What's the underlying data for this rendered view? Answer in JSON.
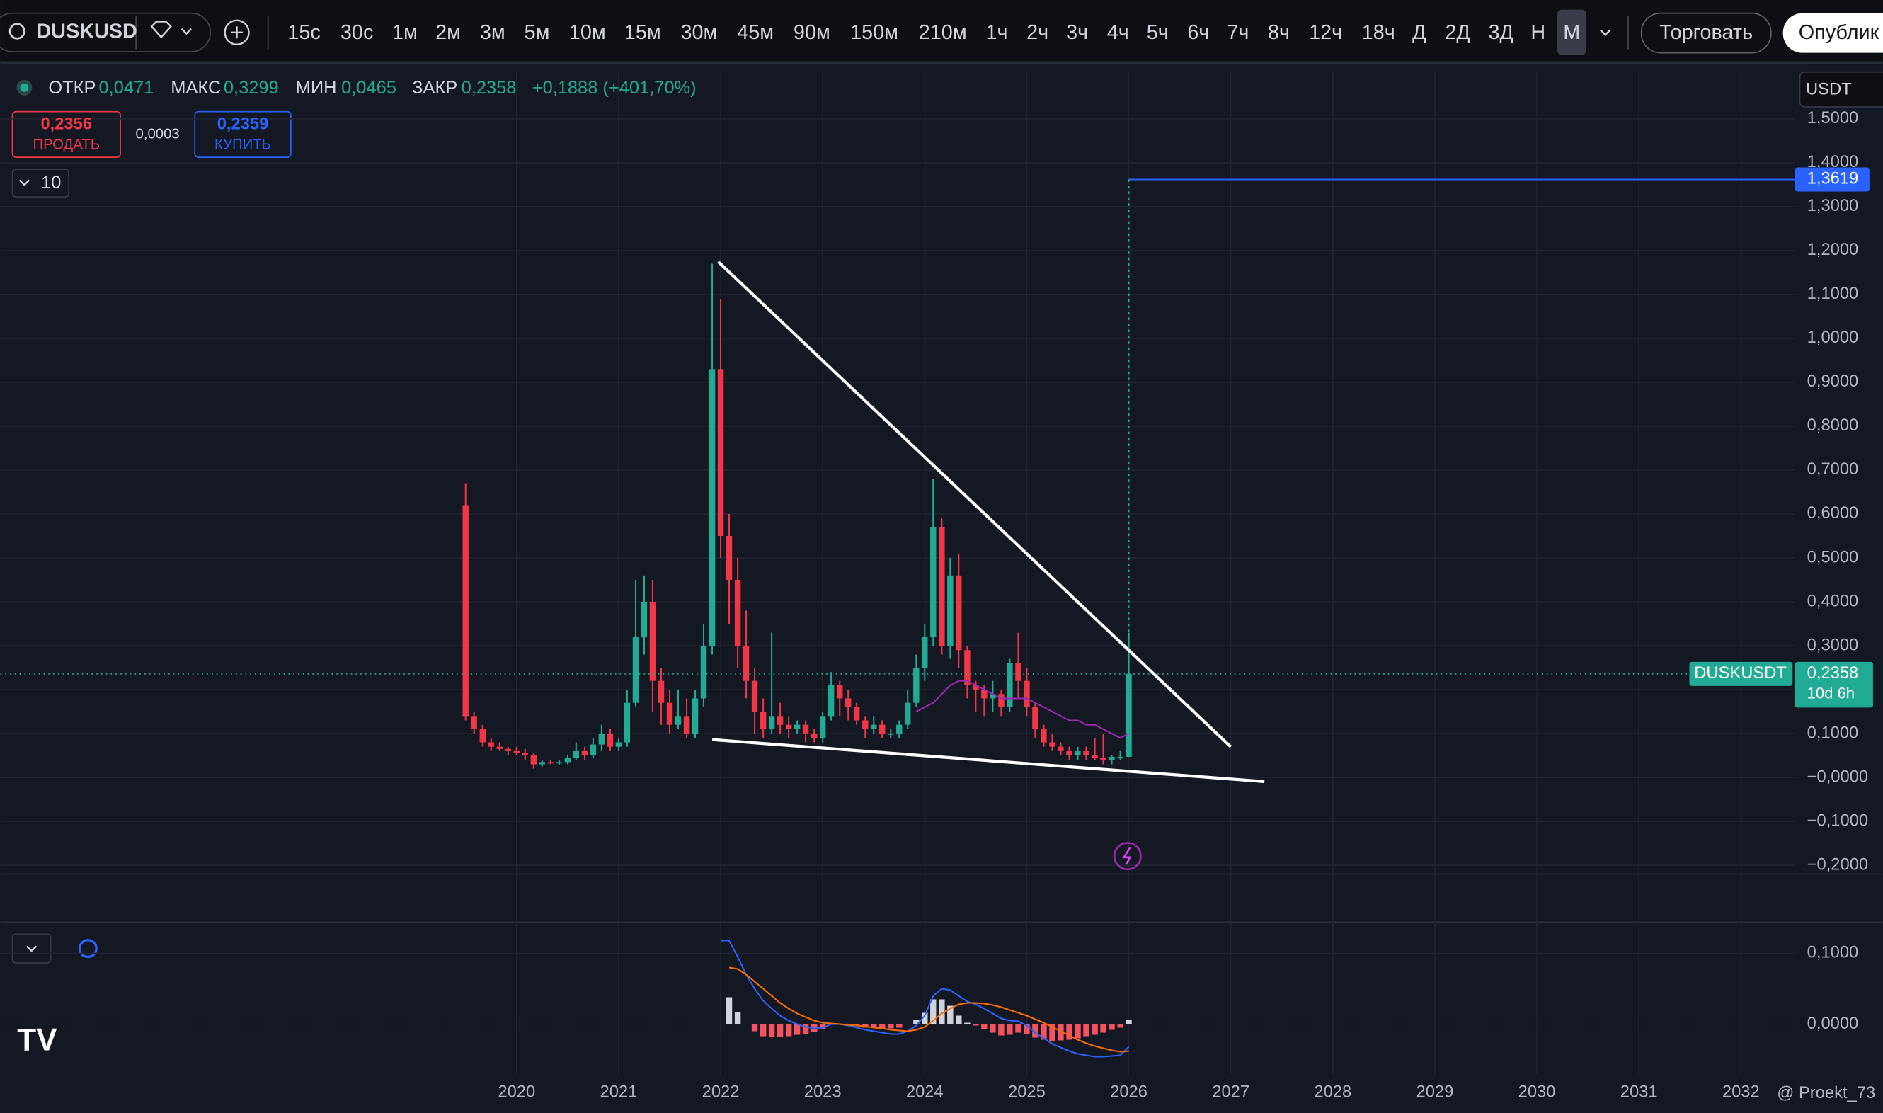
{
  "toolbar": {
    "symbol": "DUSKUSD",
    "intervals": [
      "15с",
      "30с",
      "1м",
      "2м",
      "3м",
      "5м",
      "10м",
      "15м",
      "30м",
      "45м",
      "90м",
      "150м",
      "210м",
      "1ч",
      "2ч",
      "3ч",
      "4ч",
      "5ч",
      "6ч",
      "7ч",
      "8ч",
      "12ч",
      "18ч",
      "Д",
      "2Д",
      "3Д",
      "Н",
      "М"
    ],
    "trade": "Торговать",
    "publish": "Опублик"
  },
  "legend": {
    "open_label": "ОТКР",
    "open": "0,0471",
    "high_label": "МАКС",
    "high": "0,3299",
    "low_label": "МИН",
    "low": "0,0465",
    "close_label": "ЗАКР",
    "close": "0,2358",
    "change": "+0,1888 (+401,70%)"
  },
  "trade_panel": {
    "sell_price": "0,2356",
    "sell": "ПРОДАТЬ",
    "spread": "0,0003",
    "buy_price": "0,2359",
    "buy": "КУПИТЬ"
  },
  "indicators_count": "10",
  "currency": "USDT",
  "watermark": "@ Proekt_73",
  "chart_data": [
    {
      "type": "candlestick",
      "up_color": "#22ab94",
      "down_color": "#f23645",
      "ma_color": "#9c27b0",
      "grid": true,
      "xlim": [
        2014.94,
        2032.53
      ],
      "xticks": [
        2020,
        2021,
        2022,
        2023,
        2024,
        2025,
        2026,
        2027,
        2028,
        2029,
        2030,
        2031,
        2032
      ],
      "ylim": [
        -0.22,
        1.53
      ],
      "yticks": [
        {
          "value": 1.5,
          "label": "1,5000"
        },
        {
          "value": 1.4,
          "label": "1,4000"
        },
        {
          "value": 1.3,
          "label": "1,3000"
        },
        {
          "value": 1.2,
          "label": "1,2000"
        },
        {
          "value": 1.1,
          "label": "1,1000"
        },
        {
          "value": 1.0,
          "label": "1,0000"
        },
        {
          "value": 0.9,
          "label": "0,9000"
        },
        {
          "value": 0.8,
          "label": "0,8000"
        },
        {
          "value": 0.7,
          "label": "0,7000"
        },
        {
          "value": 0.6,
          "label": "0,6000"
        },
        {
          "value": 0.5,
          "label": "0,5000"
        },
        {
          "value": 0.4,
          "label": "0,4000"
        },
        {
          "value": 0.3,
          "label": "0,3000"
        },
        {
          "value": 0.2,
          "label": "0,2000"
        },
        {
          "value": 0.1,
          "label": "0,1000"
        },
        {
          "value": 0,
          "label": "−0,0000"
        },
        {
          "value": -0.1,
          "label": "−0,1000"
        },
        {
          "value": -0.2,
          "label": "−0,2000"
        }
      ],
      "x": [
        2019.5,
        2019.583,
        2019.667,
        2019.75,
        2019.833,
        2019.917,
        2020.0,
        2020.083,
        2020.167,
        2020.25,
        2020.333,
        2020.417,
        2020.5,
        2020.583,
        2020.667,
        2020.75,
        2020.833,
        2020.917,
        2021.0,
        2021.083,
        2021.167,
        2021.25,
        2021.333,
        2021.417,
        2021.5,
        2021.583,
        2021.667,
        2021.75,
        2021.833,
        2021.917,
        2022.0,
        2022.083,
        2022.167,
        2022.25,
        2022.333,
        2022.417,
        2022.5,
        2022.583,
        2022.667,
        2022.75,
        2022.833,
        2022.917,
        2023.0,
        2023.083,
        2023.167,
        2023.25,
        2023.333,
        2023.417,
        2023.5,
        2023.583,
        2023.667,
        2023.75,
        2023.833,
        2023.917,
        2024.0,
        2024.083,
        2024.167,
        2024.25,
        2024.333,
        2024.417,
        2024.5,
        2024.583,
        2024.667,
        2024.75,
        2024.833,
        2024.917,
        2025.0,
        2025.083,
        2025.167,
        2025.25,
        2025.333,
        2025.417,
        2025.5,
        2025.583,
        2025.667,
        2025.75,
        2025.833,
        2025.917,
        2026.0
      ],
      "values": [
        [
          0.62,
          0.67,
          0.13,
          0.14
        ],
        [
          0.14,
          0.15,
          0.1,
          0.11
        ],
        [
          0.11,
          0.12,
          0.07,
          0.08
        ],
        [
          0.08,
          0.09,
          0.06,
          0.07
        ],
        [
          0.07,
          0.08,
          0.06,
          0.065
        ],
        [
          0.065,
          0.07,
          0.05,
          0.06
        ],
        [
          0.06,
          0.07,
          0.05,
          0.055
        ],
        [
          0.055,
          0.065,
          0.04,
          0.05
        ],
        [
          0.05,
          0.055,
          0.02,
          0.03
        ],
        [
          0.03,
          0.04,
          0.025,
          0.035
        ],
        [
          0.035,
          0.04,
          0.03,
          0.032
        ],
        [
          0.032,
          0.04,
          0.028,
          0.035
        ],
        [
          0.035,
          0.05,
          0.03,
          0.045
        ],
        [
          0.045,
          0.08,
          0.04,
          0.06
        ],
        [
          0.06,
          0.07,
          0.04,
          0.05
        ],
        [
          0.05,
          0.09,
          0.045,
          0.075
        ],
        [
          0.075,
          0.12,
          0.06,
          0.1
        ],
        [
          0.1,
          0.11,
          0.06,
          0.07
        ],
        [
          0.07,
          0.09,
          0.06,
          0.08
        ],
        [
          0.08,
          0.2,
          0.07,
          0.17
        ],
        [
          0.17,
          0.45,
          0.16,
          0.32
        ],
        [
          0.32,
          0.46,
          0.28,
          0.4
        ],
        [
          0.4,
          0.45,
          0.15,
          0.22
        ],
        [
          0.22,
          0.25,
          0.12,
          0.17
        ],
        [
          0.17,
          0.2,
          0.1,
          0.12
        ],
        [
          0.12,
          0.2,
          0.11,
          0.14
        ],
        [
          0.14,
          0.18,
          0.09,
          0.1
        ],
        [
          0.1,
          0.2,
          0.09,
          0.18
        ],
        [
          0.18,
          0.35,
          0.16,
          0.3
        ],
        [
          0.3,
          1.17,
          0.28,
          0.93
        ],
        [
          0.93,
          1.09,
          0.5,
          0.55
        ],
        [
          0.55,
          0.6,
          0.35,
          0.45
        ],
        [
          0.45,
          0.5,
          0.25,
          0.3
        ],
        [
          0.3,
          0.38,
          0.18,
          0.22
        ],
        [
          0.22,
          0.25,
          0.1,
          0.15
        ],
        [
          0.15,
          0.18,
          0.09,
          0.11
        ],
        [
          0.11,
          0.33,
          0.1,
          0.14
        ],
        [
          0.14,
          0.17,
          0.1,
          0.12
        ],
        [
          0.12,
          0.14,
          0.09,
          0.11
        ],
        [
          0.11,
          0.13,
          0.1,
          0.12
        ],
        [
          0.12,
          0.13,
          0.08,
          0.1
        ],
        [
          0.1,
          0.11,
          0.08,
          0.09
        ],
        [
          0.09,
          0.15,
          0.08,
          0.14
        ],
        [
          0.14,
          0.24,
          0.13,
          0.21
        ],
        [
          0.21,
          0.22,
          0.14,
          0.18
        ],
        [
          0.18,
          0.2,
          0.13,
          0.16
        ],
        [
          0.16,
          0.17,
          0.12,
          0.13
        ],
        [
          0.13,
          0.14,
          0.09,
          0.11
        ],
        [
          0.11,
          0.14,
          0.1,
          0.12
        ],
        [
          0.12,
          0.13,
          0.09,
          0.1
        ],
        [
          0.1,
          0.11,
          0.09,
          0.1
        ],
        [
          0.1,
          0.13,
          0.09,
          0.12
        ],
        [
          0.12,
          0.2,
          0.11,
          0.17
        ],
        [
          0.17,
          0.28,
          0.16,
          0.25
        ],
        [
          0.25,
          0.35,
          0.22,
          0.32
        ],
        [
          0.32,
          0.68,
          0.3,
          0.57
        ],
        [
          0.57,
          0.59,
          0.28,
          0.3
        ],
        [
          0.3,
          0.5,
          0.27,
          0.46
        ],
        [
          0.46,
          0.51,
          0.25,
          0.29
        ],
        [
          0.29,
          0.3,
          0.18,
          0.21
        ],
        [
          0.21,
          0.22,
          0.15,
          0.2
        ],
        [
          0.2,
          0.21,
          0.14,
          0.18
        ],
        [
          0.18,
          0.22,
          0.15,
          0.19
        ],
        [
          0.19,
          0.2,
          0.14,
          0.16
        ],
        [
          0.16,
          0.27,
          0.15,
          0.26
        ],
        [
          0.26,
          0.33,
          0.18,
          0.22
        ],
        [
          0.22,
          0.25,
          0.14,
          0.16
        ],
        [
          0.16,
          0.17,
          0.09,
          0.11
        ],
        [
          0.11,
          0.12,
          0.07,
          0.08
        ],
        [
          0.08,
          0.1,
          0.06,
          0.07
        ],
        [
          0.07,
          0.08,
          0.05,
          0.06
        ],
        [
          0.06,
          0.07,
          0.04,
          0.05
        ],
        [
          0.05,
          0.07,
          0.04,
          0.06
        ],
        [
          0.06,
          0.07,
          0.04,
          0.05
        ],
        [
          0.05,
          0.09,
          0.04,
          0.045
        ],
        [
          0.045,
          0.1,
          0.03,
          0.04
        ],
        [
          0.04,
          0.05,
          0.03,
          0.047
        ],
        [
          0.047,
          0.06,
          0.04,
          0.0471
        ],
        [
          0.0471,
          0.3299,
          0.0465,
          0.2358
        ]
      ],
      "ma": [
        null,
        null,
        null,
        null,
        null,
        null,
        null,
        null,
        null,
        null,
        null,
        null,
        null,
        null,
        null,
        null,
        null,
        null,
        null,
        null,
        null,
        null,
        null,
        null,
        null,
        null,
        null,
        null,
        null,
        null,
        null,
        null,
        null,
        null,
        null,
        null,
        null,
        null,
        null,
        null,
        null,
        null,
        null,
        null,
        null,
        null,
        null,
        null,
        null,
        null,
        null,
        null,
        null,
        0.15,
        0.16,
        0.17,
        0.19,
        0.21,
        0.22,
        0.22,
        0.21,
        0.2,
        0.19,
        0.18,
        0.18,
        0.18,
        0.18,
        0.17,
        0.16,
        0.15,
        0.14,
        0.13,
        0.13,
        0.12,
        0.12,
        0.11,
        0.1,
        0.09,
        0.1
      ],
      "target": {
        "value": 1.3619,
        "label": "1,3619"
      },
      "last": {
        "symbol": "DUSKUSDT",
        "value": 0.2358,
        "label": "0,2358",
        "countdown": "10d 6h"
      }
    },
    {
      "type": "macd",
      "ylim": [
        -0.0712,
        0.1407
      ],
      "yticks": [
        {
          "value": 0.1,
          "label": "0,1000"
        },
        {
          "value": 0,
          "label": "0,0000"
        }
      ],
      "x": [
        2022.0,
        2022.083,
        2022.167,
        2022.25,
        2022.333,
        2022.417,
        2022.5,
        2022.583,
        2022.667,
        2022.75,
        2022.833,
        2022.917,
        2023.0,
        2023.083,
        2023.167,
        2023.25,
        2023.333,
        2023.417,
        2023.5,
        2023.583,
        2023.667,
        2023.75,
        2023.833,
        2023.917,
        2024.0,
        2024.083,
        2024.167,
        2024.25,
        2024.333,
        2024.417,
        2024.5,
        2024.583,
        2024.667,
        2024.75,
        2024.833,
        2024.917,
        2025.0,
        2025.083,
        2025.167,
        2025.25,
        2025.333,
        2025.417,
        2025.5,
        2025.583,
        2025.667,
        2025.75,
        2025.833,
        2025.917,
        2026.0
      ],
      "series": [
        {
          "color": "#2962ff",
          "values": [
            0.118,
            0.118,
            0.095,
            0.07,
            0.05,
            0.033,
            0.022,
            0.012,
            0.005,
            0,
            -0.004,
            -0.006,
            -0.005,
            0,
            0,
            -0.002,
            -0.005,
            -0.008,
            -0.01,
            -0.012,
            -0.014,
            -0.014,
            -0.01,
            -0.002,
            0.012,
            0.04,
            0.05,
            0.048,
            0.04,
            0.032,
            0.028,
            0.022,
            0.015,
            0.008,
            0.005,
            0.004,
            -0.002,
            -0.012,
            -0.02,
            -0.028,
            -0.033,
            -0.038,
            -0.042,
            -0.044,
            -0.046,
            -0.046,
            -0.045,
            -0.044,
            -0.032
          ]
        },
        {
          "color": "#ff6d00",
          "values": [
            null,
            0.08,
            0.078,
            0.07,
            0.06,
            0.05,
            0.04,
            0.03,
            0.022,
            0.015,
            0.01,
            0.005,
            0.002,
            0.001,
            0,
            -0.001,
            -0.002,
            -0.003,
            -0.005,
            -0.006,
            -0.008,
            -0.009,
            -0.01,
            -0.008,
            -0.004,
            0.005,
            0.015,
            0.022,
            0.028,
            0.03,
            0.03,
            0.029,
            0.027,
            0.024,
            0.02,
            0.016,
            0.012,
            0.007,
            0.002,
            -0.004,
            -0.01,
            -0.016,
            -0.022,
            -0.027,
            -0.031,
            -0.034,
            -0.037,
            -0.039,
            -0.038
          ]
        }
      ],
      "histogram": [
        null,
        0.038,
        0.017,
        0,
        -0.01,
        -0.017,
        -0.018,
        -0.018,
        -0.017,
        -0.015,
        -0.014,
        -0.011,
        -0.007,
        -0.001,
        0,
        -0.001,
        -0.003,
        -0.005,
        -0.005,
        -0.006,
        -0.006,
        -0.005,
        0,
        0.006,
        0.016,
        0.035,
        0.035,
        0.026,
        0.012,
        0.002,
        -0.002,
        -0.007,
        -0.012,
        -0.016,
        -0.015,
        -0.012,
        -0.014,
        -0.019,
        -0.022,
        -0.024,
        -0.023,
        -0.022,
        -0.02,
        -0.017,
        -0.015,
        -0.012,
        -0.008,
        -0.005,
        0.006
      ]
    }
  ]
}
